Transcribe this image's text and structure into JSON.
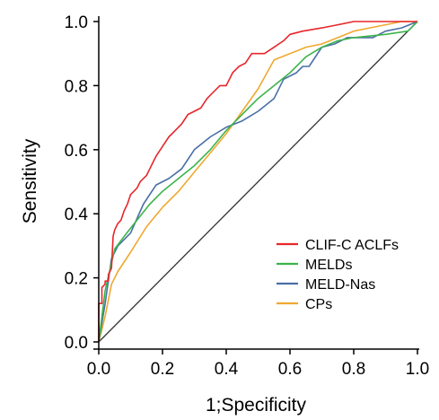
{
  "chart_data": {
    "type": "line",
    "xlabel": "1;Specificity",
    "ylabel": "Sensitivity",
    "xlim": [
      0,
      1
    ],
    "ylim": [
      0,
      1
    ],
    "xticks": [
      "0.0",
      "0.2",
      "0.4",
      "0.6",
      "0.8",
      "1.0"
    ],
    "yticks": [
      "0.0",
      "0.2",
      "0.4",
      "0.6",
      "0.8",
      "1.0"
    ],
    "reference_line": {
      "x": [
        0,
        1
      ],
      "y": [
        0,
        1
      ],
      "color": "#333333"
    },
    "legend_position": "bottom-right",
    "series": [
      {
        "name": "CLIF-C ACLFs",
        "color": "#e8262a",
        "points": [
          [
            0,
            0
          ],
          [
            0,
            0.12
          ],
          [
            0.01,
            0.12
          ],
          [
            0.01,
            0.17
          ],
          [
            0.02,
            0.18
          ],
          [
            0.02,
            0.19
          ],
          [
            0.03,
            0.19
          ],
          [
            0.03,
            0.21
          ],
          [
            0.04,
            0.23
          ],
          [
            0.045,
            0.33
          ],
          [
            0.05,
            0.35
          ],
          [
            0.06,
            0.37
          ],
          [
            0.07,
            0.38
          ],
          [
            0.08,
            0.41
          ],
          [
            0.09,
            0.43
          ],
          [
            0.1,
            0.46
          ],
          [
            0.11,
            0.47
          ],
          [
            0.12,
            0.48
          ],
          [
            0.13,
            0.5
          ],
          [
            0.14,
            0.51
          ],
          [
            0.15,
            0.52
          ],
          [
            0.16,
            0.54
          ],
          [
            0.18,
            0.58
          ],
          [
            0.2,
            0.61
          ],
          [
            0.22,
            0.64
          ],
          [
            0.24,
            0.66
          ],
          [
            0.26,
            0.68
          ],
          [
            0.28,
            0.71
          ],
          [
            0.3,
            0.72
          ],
          [
            0.32,
            0.73
          ],
          [
            0.34,
            0.76
          ],
          [
            0.36,
            0.78
          ],
          [
            0.38,
            0.8
          ],
          [
            0.4,
            0.8
          ],
          [
            0.42,
            0.84
          ],
          [
            0.44,
            0.86
          ],
          [
            0.46,
            0.87
          ],
          [
            0.48,
            0.9
          ],
          [
            0.52,
            0.9
          ],
          [
            0.55,
            0.92
          ],
          [
            0.58,
            0.94
          ],
          [
            0.6,
            0.96
          ],
          [
            0.64,
            0.97
          ],
          [
            0.7,
            0.98
          ],
          [
            0.75,
            0.99
          ],
          [
            0.8,
            1.0
          ],
          [
            1,
            1.0
          ]
        ]
      },
      {
        "name": "MELDs",
        "color": "#3cb44b",
        "points": [
          [
            0,
            0
          ],
          [
            0.02,
            0.16
          ],
          [
            0.05,
            0.29
          ],
          [
            0.08,
            0.33
          ],
          [
            0.12,
            0.38
          ],
          [
            0.16,
            0.43
          ],
          [
            0.2,
            0.47
          ],
          [
            0.25,
            0.51
          ],
          [
            0.3,
            0.55
          ],
          [
            0.35,
            0.6
          ],
          [
            0.4,
            0.66
          ],
          [
            0.45,
            0.71
          ],
          [
            0.5,
            0.76
          ],
          [
            0.55,
            0.8
          ],
          [
            0.6,
            0.84
          ],
          [
            0.65,
            0.89
          ],
          [
            0.7,
            0.92
          ],
          [
            0.75,
            0.94
          ],
          [
            0.8,
            0.95
          ],
          [
            0.9,
            0.96
          ],
          [
            0.97,
            0.97
          ],
          [
            1,
            1.0
          ]
        ]
      },
      {
        "name": "MELD-Nas",
        "color": "#4a6fa5",
        "points": [
          [
            0,
            0
          ],
          [
            0.02,
            0.12
          ],
          [
            0.04,
            0.26
          ],
          [
            0.06,
            0.3
          ],
          [
            0.1,
            0.34
          ],
          [
            0.14,
            0.43
          ],
          [
            0.18,
            0.49
          ],
          [
            0.22,
            0.51
          ],
          [
            0.26,
            0.54
          ],
          [
            0.28,
            0.57
          ],
          [
            0.3,
            0.6
          ],
          [
            0.35,
            0.64
          ],
          [
            0.4,
            0.67
          ],
          [
            0.45,
            0.69
          ],
          [
            0.5,
            0.72
          ],
          [
            0.55,
            0.76
          ],
          [
            0.58,
            0.82
          ],
          [
            0.62,
            0.84
          ],
          [
            0.64,
            0.86
          ],
          [
            0.66,
            0.86
          ],
          [
            0.7,
            0.92
          ],
          [
            0.74,
            0.93
          ],
          [
            0.78,
            0.95
          ],
          [
            0.82,
            0.95
          ],
          [
            0.86,
            0.95
          ],
          [
            0.9,
            0.97
          ],
          [
            0.95,
            0.98
          ],
          [
            1,
            1.0
          ]
        ]
      },
      {
        "name": "CPs",
        "color": "#f0a830",
        "points": [
          [
            0,
            0
          ],
          [
            0.02,
            0.08
          ],
          [
            0.04,
            0.18
          ],
          [
            0.06,
            0.22
          ],
          [
            0.1,
            0.28
          ],
          [
            0.15,
            0.36
          ],
          [
            0.2,
            0.42
          ],
          [
            0.25,
            0.47
          ],
          [
            0.3,
            0.53
          ],
          [
            0.35,
            0.59
          ],
          [
            0.4,
            0.65
          ],
          [
            0.45,
            0.72
          ],
          [
            0.5,
            0.79
          ],
          [
            0.55,
            0.88
          ],
          [
            0.6,
            0.9
          ],
          [
            0.65,
            0.92
          ],
          [
            0.7,
            0.93
          ],
          [
            0.75,
            0.95
          ],
          [
            0.8,
            0.97
          ],
          [
            0.85,
            0.98
          ],
          [
            0.9,
            0.99
          ],
          [
            0.95,
            1.0
          ],
          [
            1,
            1.0
          ]
        ]
      }
    ]
  }
}
